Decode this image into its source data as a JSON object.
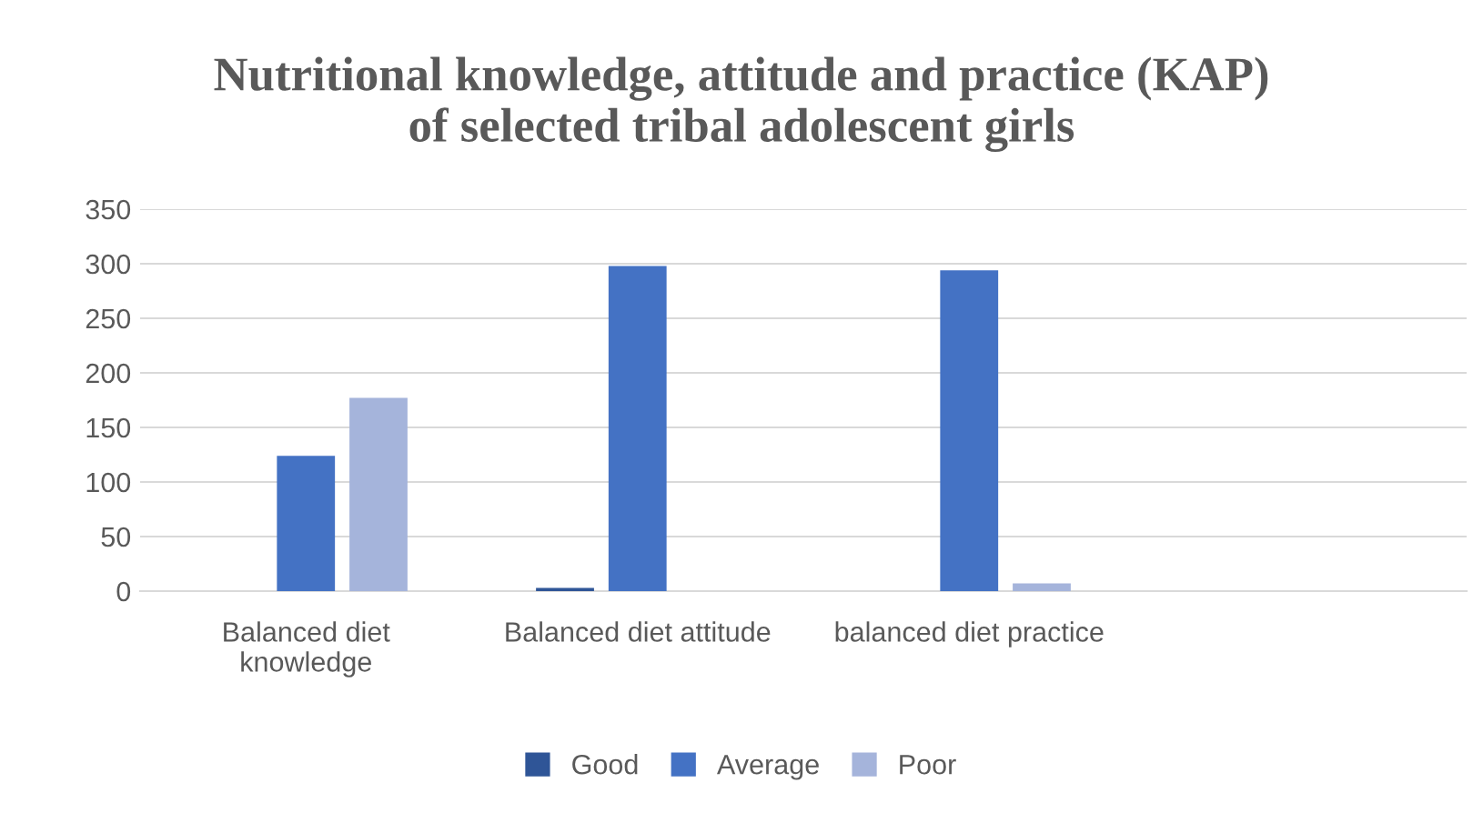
{
  "chart_data": {
    "type": "bar",
    "title": "Nutritional knowledge, attitude and practice (KAP)\nof selected tribal adolescent girls",
    "categories": [
      "Balanced diet\nknowledge",
      "Balanced diet attitude",
      "balanced diet practice",
      null
    ],
    "series": [
      {
        "name": "Good",
        "color": "#2f5597",
        "values": [
          null,
          3,
          null,
          null
        ]
      },
      {
        "name": "Average",
        "color": "#4472c4",
        "values": [
          124,
          298,
          294,
          null
        ]
      },
      {
        "name": "Poor",
        "color": "#a5b4db",
        "values": [
          177,
          null,
          7,
          null
        ]
      }
    ],
    "ylim": [
      0,
      350
    ],
    "yticks": [
      0,
      50,
      100,
      150,
      200,
      250,
      300,
      350
    ],
    "grid": "y",
    "legend": "bottom"
  }
}
